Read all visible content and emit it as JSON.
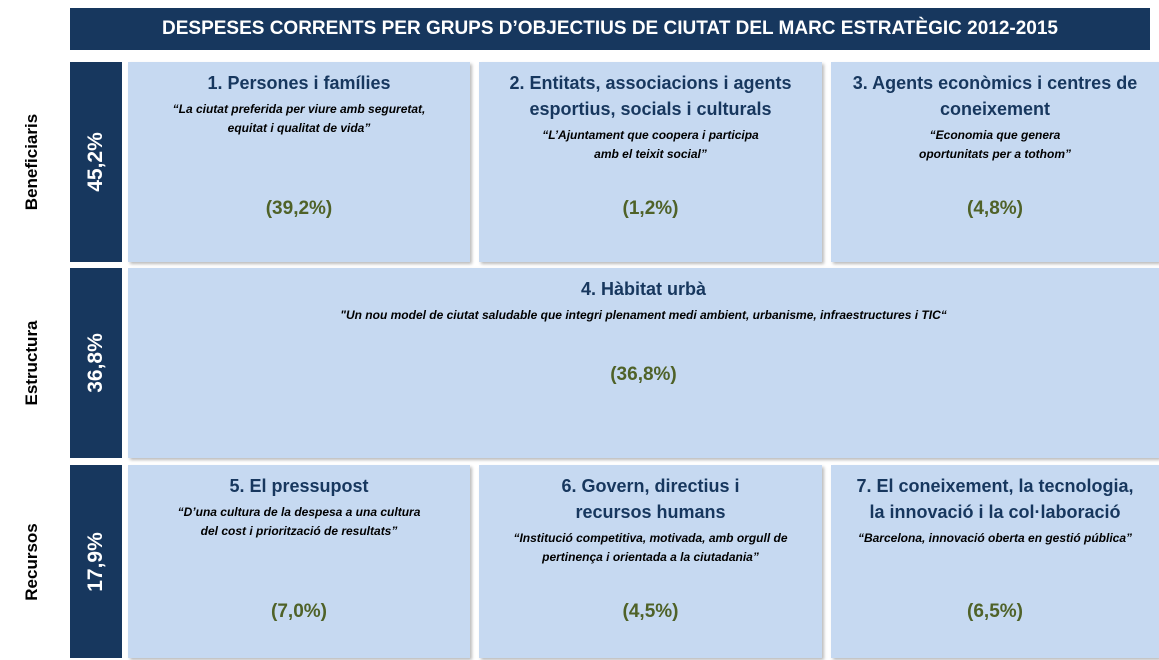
{
  "title": "DESPESES CORRENTS PER GRUPS D’OBJECTIUS DE CIUTAT DEL MARC ESTRATÈGIC 2012-2015",
  "rows": [
    {
      "label": "Beneficiaris",
      "share": "45,2%",
      "cells": [
        {
          "title": [
            "1. Persones i famílies"
          ],
          "quote": [
            "“La ciutat preferida per viure amb seguretat,",
            "equitat i qualitat de vida”"
          ],
          "share": "(39,2%)"
        },
        {
          "title": [
            "2. Entitats, associacions i agents",
            "esportius, socials i culturals"
          ],
          "quote": [
            "“L’Ajuntament que coopera i participa",
            "amb el teixit social”"
          ],
          "share": "(1,2%)"
        },
        {
          "title": [
            "3. Agents econòmics i centres de",
            "coneixement"
          ],
          "quote": [
            "“Economia que genera",
            "oportunitats per a tothom”"
          ],
          "share": "(4,8%)"
        }
      ]
    },
    {
      "label": "Estructura",
      "share": "36,8%",
      "cells": [
        {
          "title": [
            "4. Hàbitat urbà"
          ],
          "quote": [
            "\"Un nou model de ciutat saludable que integri plenament medi ambient, urbanisme, infraestructures i TIC“"
          ],
          "share": "(36,8%)"
        }
      ]
    },
    {
      "label": "Recursos",
      "share": "17,9%",
      "cells": [
        {
          "title": [
            "5. El pressupost"
          ],
          "quote": [
            "“D’una cultura de la despesa a una cultura",
            "del cost i priorització de resultats”"
          ],
          "share": "(7,0%)"
        },
        {
          "title": [
            "6. Govern, directius i",
            "recursos humans"
          ],
          "quote": [
            "“Institució competitiva, motivada, amb orgull de",
            "pertinença i orientada a la ciutadania”"
          ],
          "share": "(4,5%)"
        },
        {
          "title": [
            "7. El coneixement, la tecnologia,",
            "la innovació i la col·laboració"
          ],
          "quote": [
            "“Barcelona, innovació oberta en gestió pública”"
          ],
          "share": "(6,5%)"
        }
      ]
    }
  ]
}
